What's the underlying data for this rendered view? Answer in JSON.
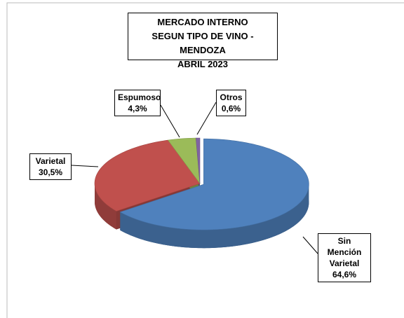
{
  "chart_data": {
    "type": "pie3d",
    "title_lines": [
      "MERCADO INTERNO",
      "SEGUN TIPO DE VINO - MENDOZA",
      "ABRIL 2023"
    ],
    "categories": [
      "Sin Mención Varietal",
      "Varietal",
      "Espumoso",
      "Otros"
    ],
    "values": [
      64.6,
      30.5,
      4.3,
      0.6
    ],
    "value_labels": [
      "64,6%",
      "30,5%",
      "4,3%",
      "0,6%"
    ],
    "colors": [
      "#4f81bd",
      "#c0504d",
      "#9bbb59",
      "#8064a2"
    ]
  }
}
